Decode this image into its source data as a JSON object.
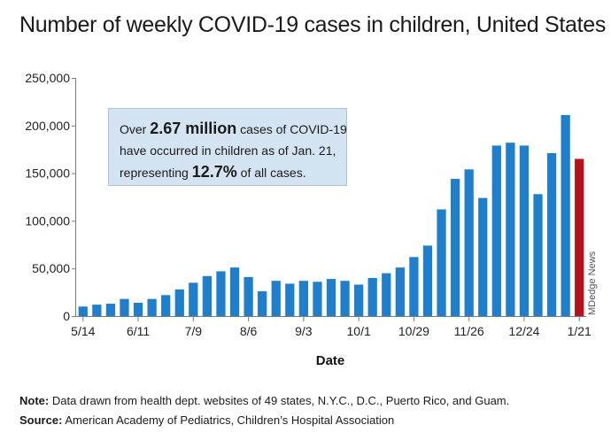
{
  "title": "Number of weekly COVID-19 cases in children, United States",
  "callout": {
    "part1": "Over",
    "highlight1": "2.67 million",
    "part2": "cases of COVID-19",
    "line2": "have occurred in children as of Jan. 21,",
    "part3": "representing",
    "highlight2": "12.7%",
    "part4": "of all cases."
  },
  "credit": "MDedge News",
  "note": {
    "label": "Note:",
    "text": "Data drawn from health dept. websites of 49 states, N.Y.C., D.C., Puerto Rico, and Guam."
  },
  "source": {
    "label": "Source:",
    "text": "American Academy of Pediatrics, Children’s Hospital Association"
  },
  "colors": {
    "bar": "#1f7fcd",
    "highlight": "#b5121b",
    "axis": "#7a7a7a"
  },
  "chart_data": {
    "type": "bar",
    "title": "Number of weekly COVID-19 cases in children, United States",
    "xlabel": "Date",
    "ylabel": "",
    "ylim": [
      0,
      250000
    ],
    "yticks": [
      "0",
      "50,000",
      "100,000",
      "150,000",
      "200,000",
      "250,000"
    ],
    "xticks": [
      {
        "index": 0,
        "label": "5/14"
      },
      {
        "index": 4,
        "label": "6/11"
      },
      {
        "index": 8,
        "label": "7/9"
      },
      {
        "index": 12,
        "label": "8/6"
      },
      {
        "index": 16,
        "label": "9/3"
      },
      {
        "index": 20,
        "label": "10/1"
      },
      {
        "index": 24,
        "label": "10/29"
      },
      {
        "index": 28,
        "label": "11/26"
      },
      {
        "index": 32,
        "label": "12/24"
      },
      {
        "index": 36,
        "label": "1/21"
      }
    ],
    "grid": false,
    "highlight_index": 36,
    "values": [
      10000,
      12000,
      13000,
      18000,
      14000,
      18000,
      22000,
      28000,
      35000,
      42000,
      47000,
      51000,
      41000,
      26000,
      37000,
      34000,
      37000,
      36000,
      39000,
      37000,
      33000,
      40000,
      45000,
      51000,
      62000,
      74000,
      112000,
      144000,
      154000,
      124000,
      179000,
      182000,
      179000,
      128000,
      171000,
      211000,
      165000
    ]
  }
}
